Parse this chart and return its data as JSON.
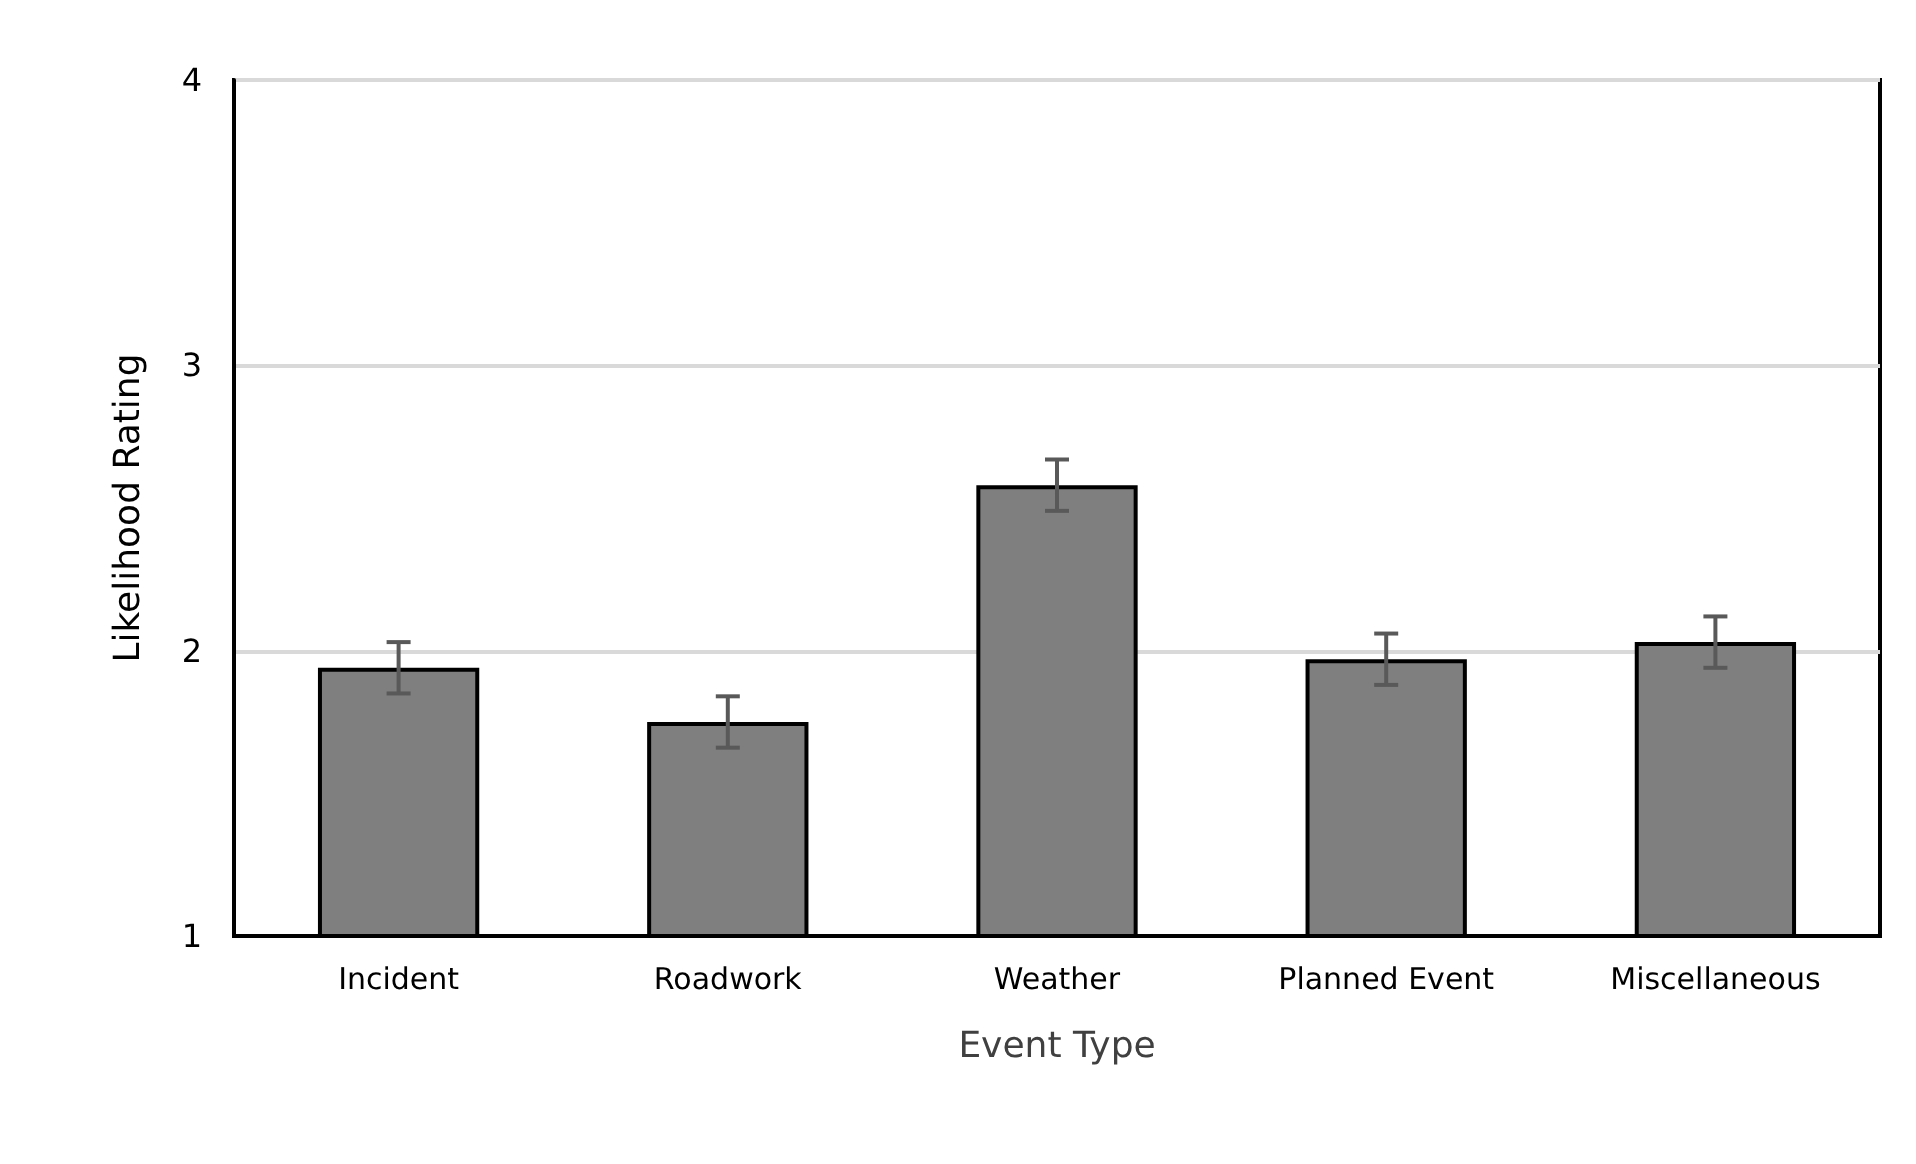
{
  "chart_data": {
    "type": "bar",
    "xlabel": "Event Type",
    "ylabel": "Likelihood Rating",
    "categories": [
      "Incident",
      "Roadwork",
      "Weather",
      "Planned Event",
      "Miscellaneous"
    ],
    "values": [
      1.94,
      1.75,
      2.58,
      1.97,
      2.03
    ],
    "errors": [
      0.09,
      0.09,
      0.09,
      0.09,
      0.09
    ],
    "color": "#7f7f7f",
    "ylim": [
      1,
      4
    ],
    "yticks": [
      1,
      2,
      3,
      4
    ],
    "grid": "y"
  }
}
